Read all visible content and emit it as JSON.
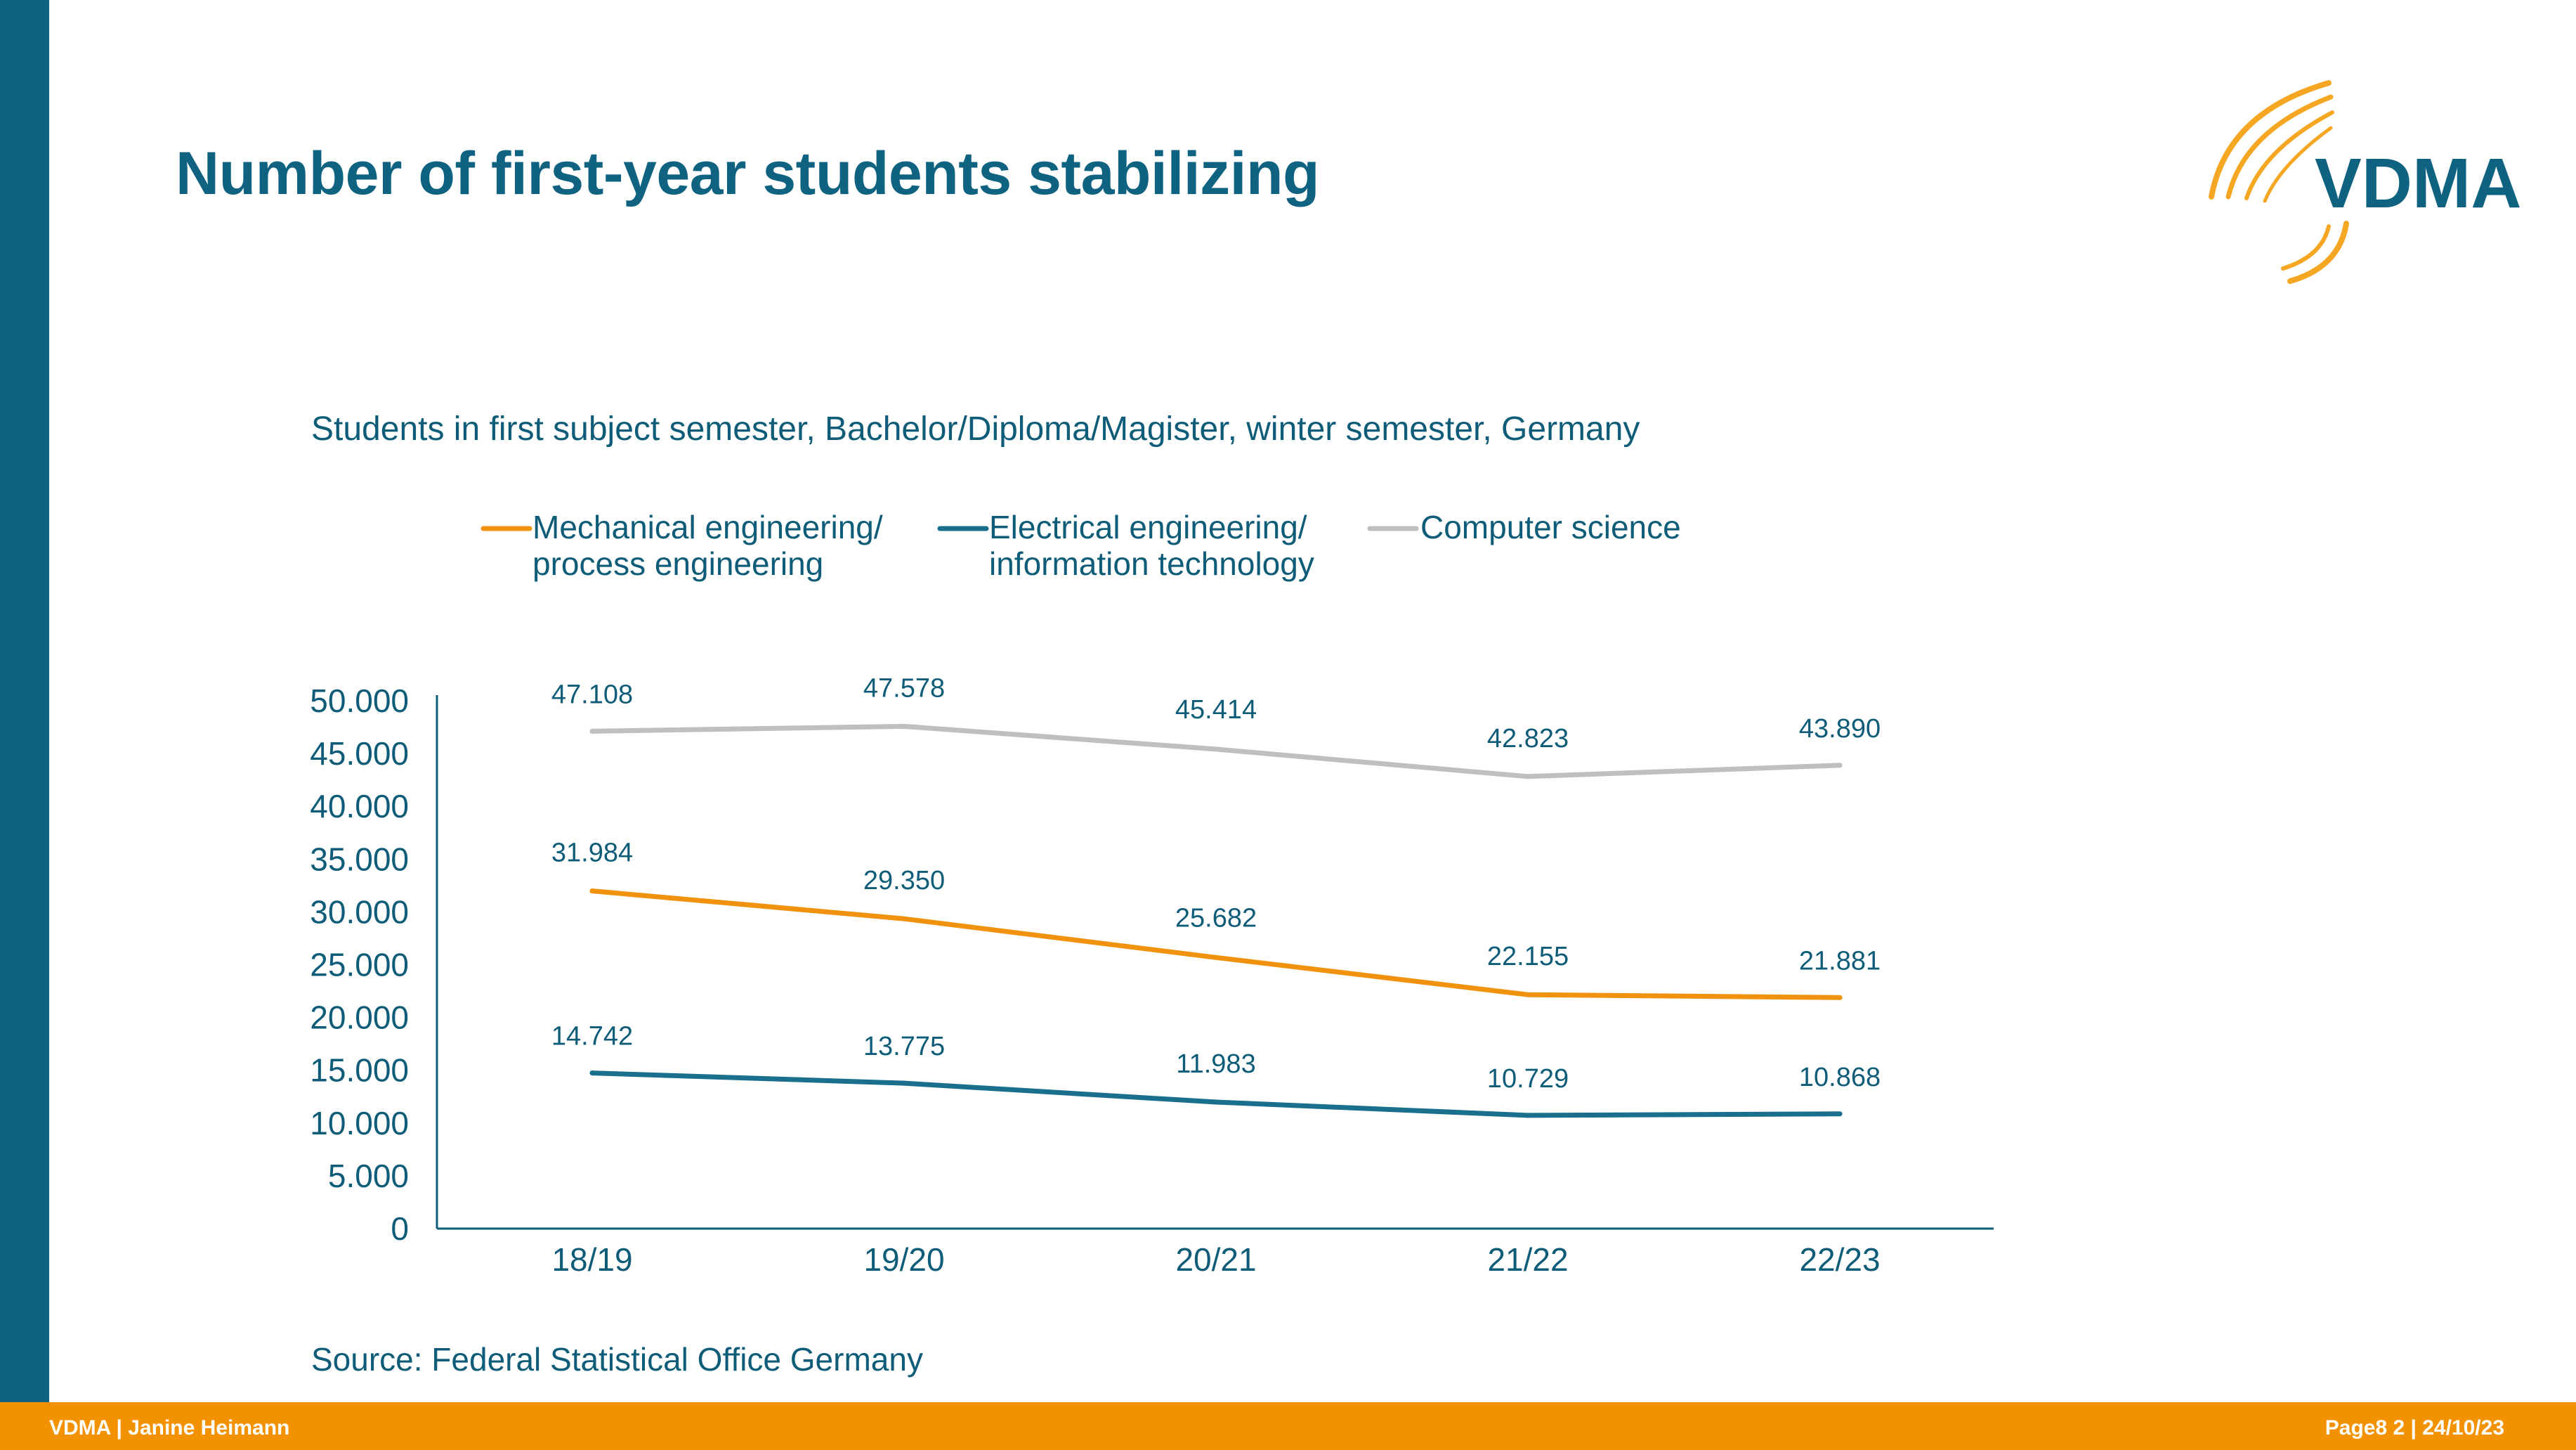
{
  "slide": {
    "title": "Number of first-year students stabilizing",
    "logo_text": "VDMA"
  },
  "footer": {
    "left_text": "VDMA | Janine Heimann",
    "right_text": "Page8 2 | 24/10/23"
  },
  "colors": {
    "brand_blue": "#0f6280",
    "brand_orange": "#f39200",
    "text_blue": "#0e5c78",
    "series_mechanical": "#f0920e",
    "series_electrical": "#1a6f8c",
    "series_computer": "#bfbfbf"
  },
  "chart_data": {
    "type": "line",
    "title": "Students in first subject semester, Bachelor/Diploma/Magister, winter semester, Germany",
    "source": "Source: Federal Statistical Office Germany",
    "categories": [
      "18/19",
      "19/20",
      "20/21",
      "21/22",
      "22/23"
    ],
    "ylim": [
      0,
      50000
    ],
    "yticks": [
      0,
      5000,
      10000,
      15000,
      20000,
      25000,
      30000,
      35000,
      40000,
      45000,
      50000
    ],
    "ytick_labels": [
      "0",
      "5.000",
      "10.000",
      "15.000",
      "20.000",
      "25.000",
      "30.000",
      "35.000",
      "40.000",
      "45.000",
      "50.000"
    ],
    "legend_position": "top",
    "series": [
      {
        "key": "mechanical",
        "name_line1": "Mechanical engineering/",
        "name_line2": "process engineering",
        "values": [
          31984,
          29350,
          25682,
          22155,
          21881
        ],
        "labels": [
          "31.984",
          "29.350",
          "25.682",
          "22.155",
          "21.881"
        ]
      },
      {
        "key": "electrical",
        "name_line1": "Electrical engineering/",
        "name_line2": "information technology",
        "values": [
          14742,
          13775,
          11983,
          10729,
          10868
        ],
        "labels": [
          "14.742",
          "13.775",
          "11.983",
          "10.729",
          "10.868"
        ]
      },
      {
        "key": "computer",
        "name_line1": "Computer science",
        "name_line2": "",
        "values": [
          47108,
          47578,
          45414,
          42823,
          43890
        ],
        "labels": [
          "47.108",
          "47.578",
          "45.414",
          "42.823",
          "43.890"
        ]
      }
    ]
  }
}
